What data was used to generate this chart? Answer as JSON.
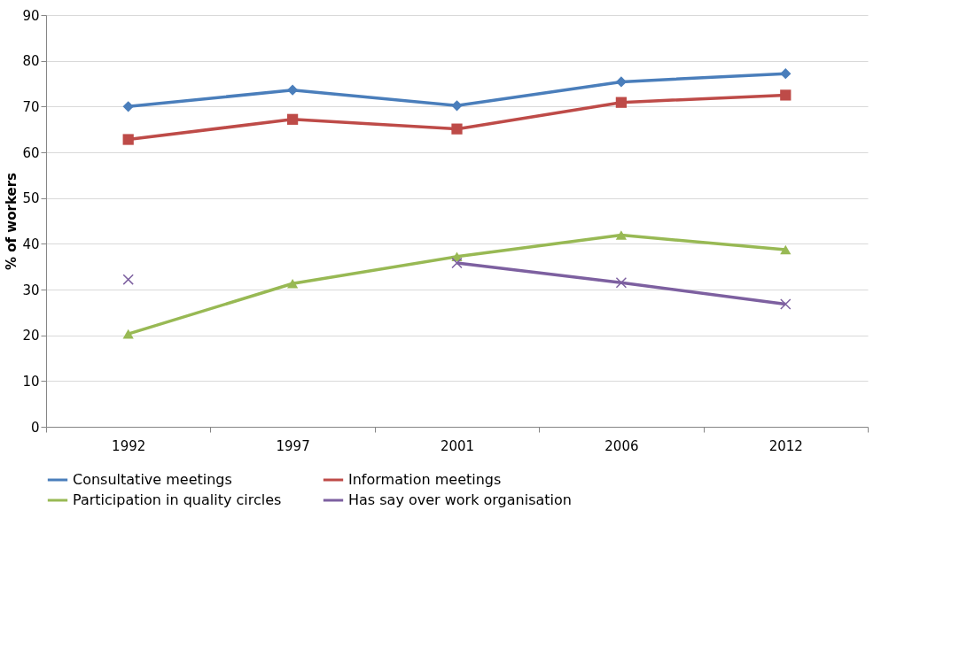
{
  "chart_data": {
    "type": "line",
    "ylabel": "% of workers",
    "categories": [
      "1992",
      "1997",
      "2001",
      "2006",
      "2012"
    ],
    "series": [
      {
        "name": "Consultative meetings",
        "color": "#4a7ebb",
        "marker": "diamond",
        "values": [
          70,
          73.6,
          70.2,
          75.4,
          77.2
        ]
      },
      {
        "name": "Information meetings",
        "color": "#be4b48",
        "marker": "square",
        "values": [
          62.8,
          67.2,
          65.1,
          70.9,
          72.5
        ]
      },
      {
        "name": "Participation in quality circles",
        "color": "#98b954",
        "marker": "triangle",
        "values": [
          20.3,
          31.3,
          37.2,
          41.9,
          38.7
        ]
      },
      {
        "name": "Has say over work organisation",
        "color": "#7d60a0",
        "marker": "cross",
        "values": [
          32.2,
          null,
          35.8,
          31.5,
          26.8
        ]
      }
    ],
    "ylim": [
      0,
      90
    ],
    "yticks": [
      0,
      10,
      20,
      30,
      40,
      50,
      60,
      70,
      80,
      90
    ],
    "grid": "y",
    "legend": "bottom",
    "line_style": "solid"
  }
}
